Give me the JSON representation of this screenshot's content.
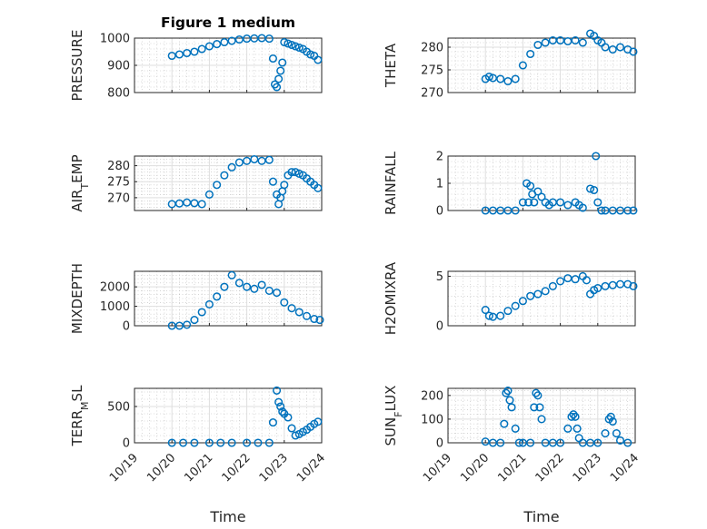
{
  "figure": {
    "title": "Figure 1 medium",
    "xlabel": "Time",
    "marker_color": "#0072BD",
    "x_ticks": [
      "10/19",
      "10/20",
      "10/21",
      "10/22",
      "10/23",
      "10/24"
    ]
  },
  "chart_data": [
    {
      "type": "scatter",
      "ylabel": "PRESSURE",
      "xlim": [
        19,
        24
      ],
      "ylim": [
        800,
        1000
      ],
      "yticks": [
        800,
        900,
        1000
      ],
      "grid": true,
      "x": [
        20.0,
        20.2,
        20.4,
        20.6,
        20.8,
        21.0,
        21.2,
        21.4,
        21.6,
        21.8,
        22.0,
        22.2,
        22.4,
        22.6,
        22.7,
        22.75,
        22.8,
        22.85,
        22.9,
        22.95,
        23.0,
        23.1,
        23.2,
        23.3,
        23.4,
        23.5,
        23.6,
        23.7,
        23.8,
        23.9
      ],
      "y": [
        935,
        940,
        945,
        950,
        960,
        970,
        978,
        985,
        990,
        995,
        998,
        999,
        1000,
        998,
        925,
        830,
        820,
        850,
        880,
        910,
        985,
        980,
        975,
        970,
        965,
        960,
        950,
        940,
        935,
        920
      ]
    },
    {
      "type": "scatter",
      "ylabel": "THETA",
      "xlim": [
        19,
        24
      ],
      "ylim": [
        270,
        282
      ],
      "yticks": [
        270,
        275,
        280
      ],
      "grid": true,
      "x": [
        20.0,
        20.1,
        20.2,
        20.4,
        20.6,
        20.8,
        21.0,
        21.2,
        21.4,
        21.6,
        21.8,
        22.0,
        22.2,
        22.4,
        22.6,
        22.8,
        22.9,
        23.0,
        23.1,
        23.2,
        23.4,
        23.6,
        23.8,
        23.95
      ],
      "y": [
        273,
        273.5,
        273.2,
        273,
        272.5,
        273,
        276,
        278.5,
        280.5,
        281,
        281.5,
        281.5,
        281.3,
        281.5,
        281,
        283,
        282.5,
        281.5,
        281,
        280,
        279.5,
        280,
        279.5,
        279
      ]
    },
    {
      "type": "scatter",
      "ylabel": "AIR_TEMP",
      "ylabel_main": "AIR",
      "ylabel_sub": "T",
      "ylabel_rest": "EMP",
      "xlim": [
        19,
        24
      ],
      "ylim": [
        266,
        283
      ],
      "yticks": [
        270,
        275,
        280
      ],
      "grid": true,
      "x": [
        20.0,
        20.2,
        20.4,
        20.6,
        20.8,
        21.0,
        21.2,
        21.4,
        21.6,
        21.8,
        22.0,
        22.2,
        22.4,
        22.6,
        22.7,
        22.8,
        22.85,
        22.9,
        22.95,
        23.0,
        23.1,
        23.2,
        23.3,
        23.4,
        23.5,
        23.6,
        23.7,
        23.8,
        23.9
      ],
      "y": [
        268,
        268.2,
        268.5,
        268.3,
        268,
        271,
        274,
        277,
        279.5,
        281,
        281.5,
        282,
        281.5,
        281.8,
        275,
        271,
        268,
        270,
        272,
        274,
        277,
        278,
        278,
        277.5,
        277,
        276,
        275,
        274,
        273
      ]
    },
    {
      "type": "scatter",
      "ylabel": "RAINFALL",
      "xlim": [
        19,
        24
      ],
      "ylim": [
        0,
        2
      ],
      "yticks": [
        0,
        1,
        2
      ],
      "grid": true,
      "x": [
        20.0,
        20.2,
        20.4,
        20.6,
        20.8,
        21.0,
        21.1,
        21.15,
        21.2,
        21.25,
        21.3,
        21.4,
        21.5,
        21.6,
        21.7,
        21.8,
        22.0,
        22.2,
        22.4,
        22.5,
        22.6,
        22.8,
        22.9,
        22.95,
        23.0,
        23.1,
        23.2,
        23.4,
        23.6,
        23.8,
        23.95
      ],
      "y": [
        0,
        0,
        0,
        0,
        0,
        0.3,
        1.0,
        0.3,
        0.9,
        0.6,
        0.3,
        0.7,
        0.5,
        0.3,
        0.2,
        0.3,
        0.3,
        0.2,
        0.3,
        0.2,
        0.1,
        0.8,
        0.75,
        2.0,
        0.3,
        0,
        0,
        0,
        0,
        0,
        0
      ]
    },
    {
      "type": "scatter",
      "ylabel": "MIXDEPTH",
      "xlim": [
        19,
        24
      ],
      "ylim": [
        0,
        2800
      ],
      "yticks": [
        0,
        1000,
        2000
      ],
      "grid": true,
      "x": [
        20.0,
        20.2,
        20.4,
        20.6,
        20.8,
        21.0,
        21.2,
        21.4,
        21.6,
        21.8,
        22.0,
        22.2,
        22.4,
        22.6,
        22.8,
        23.0,
        23.2,
        23.4,
        23.6,
        23.8,
        23.95
      ],
      "y": [
        0,
        0,
        50,
        300,
        700,
        1100,
        1500,
        2000,
        2600,
        2200,
        2000,
        1900,
        2100,
        1800,
        1700,
        1200,
        900,
        700,
        500,
        350,
        300
      ]
    },
    {
      "type": "scatter",
      "ylabel": "H2OMIXRA",
      "xlim": [
        19,
        24
      ],
      "ylim": [
        0,
        5.5
      ],
      "yticks": [
        0,
        5
      ],
      "grid": true,
      "x": [
        20.0,
        20.1,
        20.2,
        20.4,
        20.6,
        20.8,
        21.0,
        21.2,
        21.4,
        21.6,
        21.8,
        22.0,
        22.2,
        22.4,
        22.6,
        22.7,
        22.8,
        22.9,
        23.0,
        23.2,
        23.4,
        23.6,
        23.8,
        23.95
      ],
      "y": [
        1.6,
        1.0,
        0.9,
        1.0,
        1.5,
        2.0,
        2.5,
        3.0,
        3.2,
        3.5,
        4.0,
        4.5,
        4.8,
        4.7,
        5.0,
        4.6,
        3.2,
        3.6,
        3.8,
        4.0,
        4.1,
        4.2,
        4.2,
        4.0
      ]
    },
    {
      "type": "scatter",
      "ylabel": "TERR_MSL",
      "ylabel_main": "TERR",
      "ylabel_sub": "M",
      "ylabel_rest": "SL",
      "xlim": [
        19,
        24
      ],
      "ylim": [
        0,
        750
      ],
      "yticks": [
        0,
        500
      ],
      "grid": true,
      "x": [
        20.0,
        20.3,
        20.6,
        21.0,
        21.3,
        21.6,
        22.0,
        22.3,
        22.6,
        22.7,
        22.8,
        22.85,
        22.9,
        22.95,
        23.0,
        23.1,
        23.2,
        23.3,
        23.4,
        23.5,
        23.6,
        23.7,
        23.8,
        23.9
      ],
      "y": [
        0,
        0,
        0,
        0,
        0,
        0,
        0,
        0,
        0,
        280,
        720,
        560,
        500,
        430,
        400,
        350,
        200,
        100,
        120,
        150,
        180,
        220,
        260,
        290
      ]
    },
    {
      "type": "scatter",
      "ylabel": "SUN_FLUX",
      "ylabel_main": "SUN",
      "ylabel_sub": "F",
      "ylabel_rest": "LUX",
      "xlim": [
        19,
        24
      ],
      "ylim": [
        0,
        230
      ],
      "yticks": [
        0,
        100,
        200
      ],
      "grid": true,
      "x": [
        20.0,
        20.2,
        20.4,
        20.5,
        20.55,
        20.6,
        20.65,
        20.7,
        20.8,
        20.9,
        21.0,
        21.2,
        21.3,
        21.35,
        21.4,
        21.45,
        21.5,
        21.6,
        21.8,
        22.0,
        22.2,
        22.3,
        22.35,
        22.4,
        22.45,
        22.5,
        22.6,
        22.8,
        23.0,
        23.2,
        23.3,
        23.35,
        23.4,
        23.5,
        23.6,
        23.8
      ],
      "y": [
        5,
        0,
        0,
        80,
        210,
        220,
        180,
        150,
        60,
        0,
        0,
        0,
        150,
        210,
        200,
        150,
        100,
        0,
        0,
        0,
        60,
        110,
        120,
        110,
        60,
        20,
        0,
        0,
        0,
        40,
        100,
        110,
        90,
        40,
        10,
        0
      ]
    }
  ]
}
